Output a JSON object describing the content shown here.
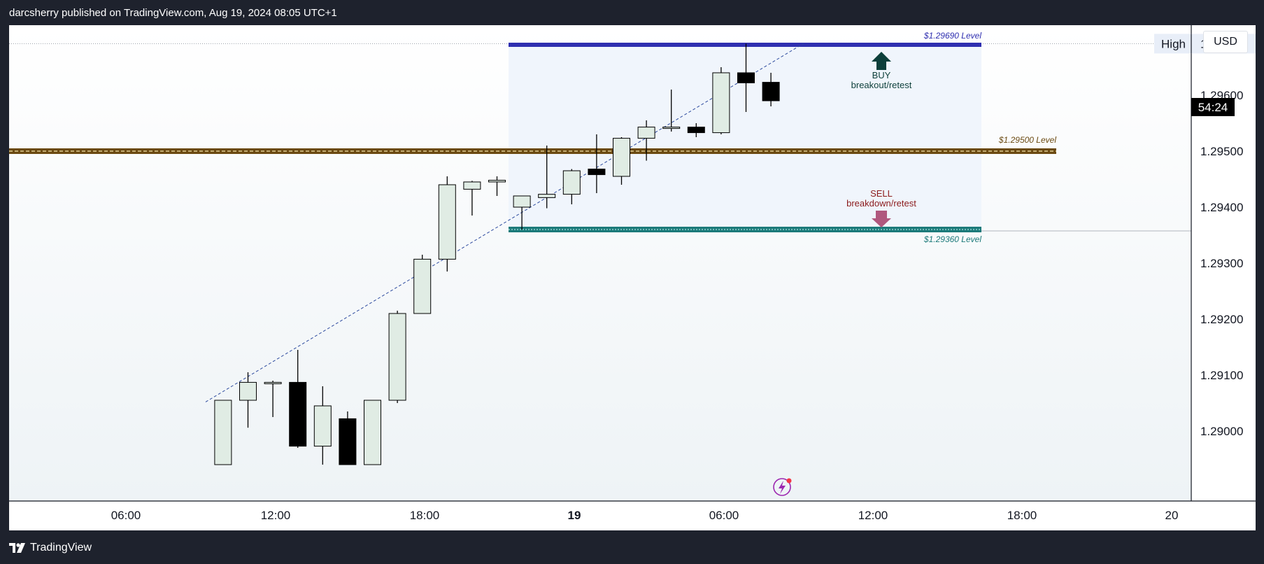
{
  "header": {
    "publisher_line": "darcsherry published on TradingView.com, Aug 19, 2024 08:05 UTC+1"
  },
  "footer": {
    "brand": "TradingView"
  },
  "price_scale": {
    "currency": "USD"
  },
  "colors": {
    "bull_body": "#e0ece4",
    "bear_body": "#000000",
    "wick": "#000000",
    "level_top": "#2f2fb0",
    "level_mid": "#6b4a12",
    "level_bottom": "#1c7a7a",
    "buy_arrow": "#0d3f3a",
    "sell_arrow": "#b0587e",
    "sell_text": "#8b1a1a",
    "buy_text": "#0d3f3a",
    "trendline": "#2c4a9e",
    "tag_bg": "#000000"
  },
  "chart_data": {
    "type": "candlestick",
    "symbol_note": "",
    "y_ticks": [
      "1.29000",
      "1.29100",
      "1.29200",
      "1.29300",
      "1.29400",
      "1.29500"
    ],
    "x_ticks": [
      "06:00",
      "12:00",
      "18:00",
      "19",
      "06:00",
      "12:00",
      "18:00",
      "20"
    ],
    "ylim": [
      1.2894,
      1.2974
    ],
    "candles": [
      {
        "t": 10,
        "o": 1.2894,
        "h": 1.29055,
        "l": 1.2894,
        "c": 1.29055
      },
      {
        "t": 11,
        "o": 1.29055,
        "h": 1.29105,
        "l": 1.29006,
        "c": 1.29087
      },
      {
        "t": 12,
        "o": 1.29087,
        "h": 1.2909,
        "l": 1.29025,
        "c": 1.29087
      },
      {
        "t": 13,
        "o": 1.29087,
        "h": 1.29145,
        "l": 1.2897,
        "c": 1.28973
      },
      {
        "t": 14,
        "o": 1.28973,
        "h": 1.2908,
        "l": 1.2894,
        "c": 1.29045
      },
      {
        "t": 15,
        "o": 1.29022,
        "h": 1.29035,
        "l": 1.2894,
        "c": 1.2894
      },
      {
        "t": 16,
        "o": 1.2894,
        "h": 1.29055,
        "l": 1.2894,
        "c": 1.29055
      },
      {
        "t": 17,
        "o": 1.29055,
        "h": 1.29215,
        "l": 1.2905,
        "c": 1.2921
      },
      {
        "t": 18,
        "o": 1.2921,
        "h": 1.29315,
        "l": 1.2921,
        "c": 1.29307
      },
      {
        "t": 19,
        "o": 1.29307,
        "h": 1.29455,
        "l": 1.29285,
        "c": 1.2944
      },
      {
        "t": 20,
        "o": 1.29432,
        "h": 1.29447,
        "l": 1.29385,
        "c": 1.29445
      },
      {
        "t": 21,
        "o": 1.29445,
        "h": 1.29455,
        "l": 1.2942,
        "c": 1.29448
      },
      {
        "t": 22,
        "o": 1.294,
        "h": 1.2942,
        "l": 1.2936,
        "c": 1.2942
      },
      {
        "t": 23,
        "o": 1.29417,
        "h": 1.2951,
        "l": 1.29398,
        "c": 1.29423
      },
      {
        "t": 24,
        "o": 1.29423,
        "h": 1.29468,
        "l": 1.29405,
        "c": 1.29465
      },
      {
        "t": 25,
        "o": 1.29468,
        "h": 1.2953,
        "l": 1.29425,
        "c": 1.29458
      },
      {
        "t": 26,
        "o": 1.29455,
        "h": 1.29525,
        "l": 1.2944,
        "c": 1.29523
      },
      {
        "t": 27,
        "o": 1.29523,
        "h": 1.29555,
        "l": 1.29483,
        "c": 1.29543
      },
      {
        "t": 28,
        "o": 1.29543,
        "h": 1.2961,
        "l": 1.29535,
        "c": 1.29543
      },
      {
        "t": 29,
        "o": 1.29543,
        "h": 1.2955,
        "l": 1.29525,
        "c": 1.29533
      },
      {
        "t": 30,
        "o": 1.29533,
        "h": 1.2965,
        "l": 1.2953,
        "c": 1.2964
      },
      {
        "t": 31,
        "o": 1.2964,
        "h": 1.29692,
        "l": 1.2957,
        "c": 1.29622
      },
      {
        "t": 32,
        "o": 1.29623,
        "h": 1.2964,
        "l": 1.2958,
        "c": 1.2959
      }
    ],
    "levels": [
      {
        "price": 1.2969,
        "label": "$1.29690 Level",
        "style": "top"
      },
      {
        "price": 1.295,
        "label": "$1.29500 Level",
        "style": "mid"
      },
      {
        "price": 1.2936,
        "label": "$1.29360 Level",
        "style": "bottom"
      }
    ],
    "high_marker": {
      "label": "High",
      "value": "1.29692"
    },
    "countdown": {
      "value": "54:24",
      "hidden_price": "1.29590"
    },
    "trendline": {
      "from": {
        "t": 9.3,
        "p": 1.29052
      },
      "to": {
        "t": 33.3,
        "p": 1.29692
      }
    },
    "annotations": {
      "buy": {
        "title": "BUY",
        "subtitle": "breakout/retest"
      },
      "sell": {
        "title": "SELL",
        "subtitle": "breakdown/retest"
      }
    },
    "grid": false
  }
}
